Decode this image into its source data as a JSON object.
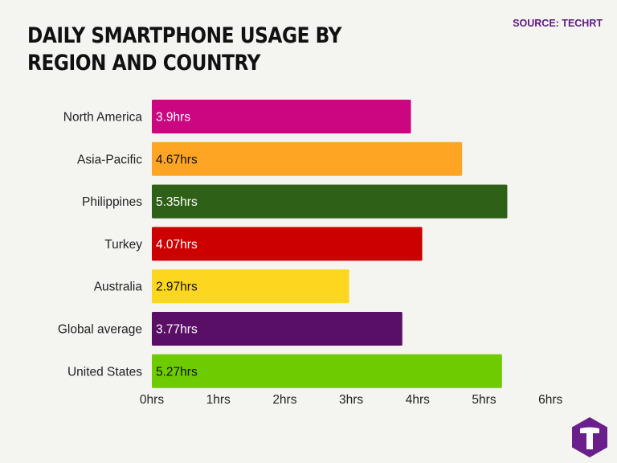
{
  "header": {
    "title": "DAILY SMARTPHONE USAGE BY REGION AND COUNTRY",
    "source": "SOURCE: TECHRT"
  },
  "logo": {
    "icon": "techrt-logo-icon",
    "letter": "T",
    "color": "#6a1f8c"
  },
  "chart_data": {
    "type": "bar",
    "orientation": "horizontal",
    "title": "DAILY SMARTPHONE USAGE BY REGION AND COUNTRY",
    "categories": [
      "North America",
      "Asia-Pacific",
      "Philippines",
      "Turkey",
      "Australia",
      "Global average",
      "United States"
    ],
    "values": [
      3.9,
      4.67,
      5.35,
      4.07,
      2.97,
      3.77,
      5.27
    ],
    "value_labels": [
      "3.9hrs",
      "4.67hrs",
      "5.35hrs",
      "4.07hrs",
      "2.97hrs",
      "3.77hrs",
      "5.27hrs"
    ],
    "bar_colors": [
      "#cc0680",
      "#ffa524",
      "#2e6117",
      "#cc0000",
      "#fdd620",
      "#5a0f66",
      "#6ecb00"
    ],
    "label_colors": [
      "#ffffff",
      "#111111",
      "#ffffff",
      "#ffffff",
      "#111111",
      "#ffffff",
      "#111111"
    ],
    "x_ticks": [
      "0hrs",
      "1hrs",
      "2hrs",
      "3hrs",
      "4hrs",
      "5hrs",
      "6hrs"
    ],
    "xlim": [
      0,
      6
    ],
    "grid": false,
    "legend": "none"
  }
}
